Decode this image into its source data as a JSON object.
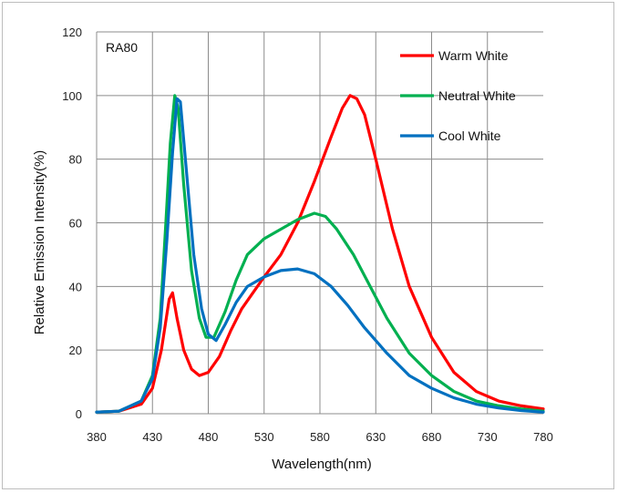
{
  "chart_data": {
    "type": "line",
    "annotation": "RA80",
    "xlabel": "Wavelength(nm)",
    "ylabel": "Relative Emission Intensity(%)",
    "xlim": [
      380,
      780
    ],
    "ylim": [
      0,
      120
    ],
    "xticks": [
      380,
      430,
      480,
      530,
      580,
      630,
      680,
      730,
      780
    ],
    "yticks": [
      0,
      20,
      40,
      60,
      80,
      100,
      120
    ],
    "grid": true,
    "legend_position": "top-right",
    "series": [
      {
        "name": "Warm White",
        "color": "#ff0000",
        "points": [
          [
            380,
            0.5
          ],
          [
            400,
            0.8
          ],
          [
            420,
            3
          ],
          [
            430,
            8
          ],
          [
            438,
            20
          ],
          [
            445,
            36
          ],
          [
            448,
            38
          ],
          [
            452,
            30
          ],
          [
            458,
            20
          ],
          [
            465,
            14
          ],
          [
            472,
            12
          ],
          [
            480,
            13
          ],
          [
            490,
            18
          ],
          [
            500,
            26
          ],
          [
            510,
            33
          ],
          [
            520,
            38
          ],
          [
            530,
            43
          ],
          [
            545,
            50
          ],
          [
            560,
            60
          ],
          [
            575,
            73
          ],
          [
            590,
            87
          ],
          [
            600,
            96
          ],
          [
            607,
            100
          ],
          [
            613,
            99
          ],
          [
            620,
            94
          ],
          [
            630,
            80
          ],
          [
            645,
            58
          ],
          [
            660,
            40
          ],
          [
            680,
            24
          ],
          [
            700,
            13
          ],
          [
            720,
            7
          ],
          [
            740,
            4
          ],
          [
            760,
            2.5
          ],
          [
            780,
            1.5
          ]
        ]
      },
      {
        "name": "Neutral White",
        "color": "#00b050",
        "points": [
          [
            380,
            0.5
          ],
          [
            400,
            0.8
          ],
          [
            420,
            4
          ],
          [
            430,
            12
          ],
          [
            437,
            30
          ],
          [
            442,
            60
          ],
          [
            446,
            85
          ],
          [
            450,
            100
          ],
          [
            453,
            96
          ],
          [
            458,
            72
          ],
          [
            465,
            45
          ],
          [
            472,
            30
          ],
          [
            478,
            24
          ],
          [
            485,
            24
          ],
          [
            495,
            32
          ],
          [
            505,
            42
          ],
          [
            515,
            50
          ],
          [
            530,
            55
          ],
          [
            545,
            58
          ],
          [
            560,
            61
          ],
          [
            575,
            63
          ],
          [
            585,
            62
          ],
          [
            595,
            58
          ],
          [
            610,
            50
          ],
          [
            625,
            40
          ],
          [
            640,
            30
          ],
          [
            660,
            19
          ],
          [
            680,
            12
          ],
          [
            700,
            7
          ],
          [
            720,
            4
          ],
          [
            740,
            2.5
          ],
          [
            760,
            1.5
          ],
          [
            780,
            0.8
          ]
        ]
      },
      {
        "name": "Cool White",
        "color": "#0070c0",
        "points": [
          [
            380,
            0.5
          ],
          [
            400,
            0.8
          ],
          [
            420,
            4
          ],
          [
            430,
            11
          ],
          [
            437,
            27
          ],
          [
            443,
            55
          ],
          [
            448,
            82
          ],
          [
            452,
            99
          ],
          [
            455,
            98
          ],
          [
            460,
            78
          ],
          [
            467,
            50
          ],
          [
            474,
            33
          ],
          [
            480,
            25
          ],
          [
            487,
            23
          ],
          [
            495,
            28
          ],
          [
            505,
            35
          ],
          [
            515,
            40
          ],
          [
            530,
            43
          ],
          [
            545,
            45
          ],
          [
            560,
            45.5
          ],
          [
            575,
            44
          ],
          [
            590,
            40
          ],
          [
            605,
            34
          ],
          [
            620,
            27
          ],
          [
            640,
            19
          ],
          [
            660,
            12
          ],
          [
            680,
            8
          ],
          [
            700,
            5
          ],
          [
            720,
            3
          ],
          [
            740,
            1.8
          ],
          [
            760,
            1
          ],
          [
            780,
            0.5
          ]
        ]
      }
    ]
  }
}
